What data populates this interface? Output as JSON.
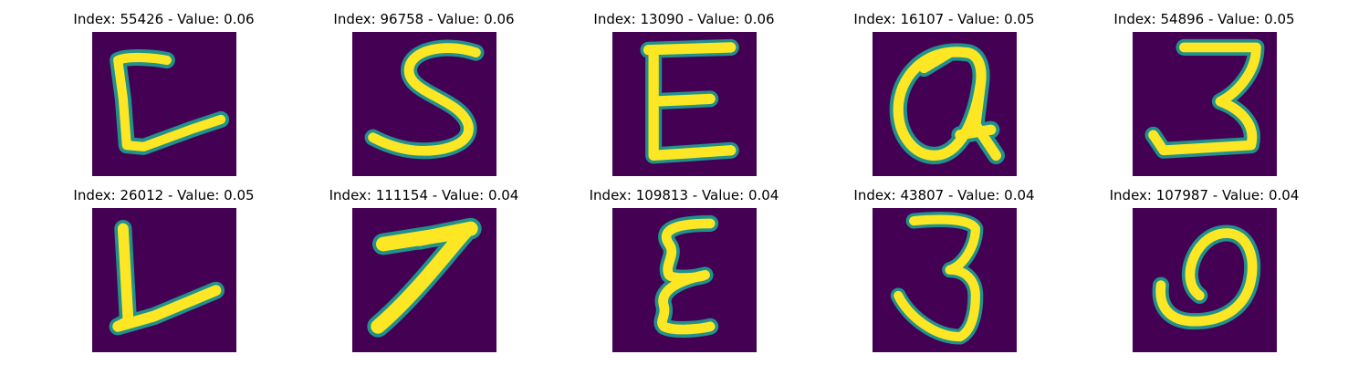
{
  "grid": [
    {
      "title": "Index: 55426 - Value: 0.06",
      "glyph": "C"
    },
    {
      "title": "Index: 96758 - Value: 0.06",
      "glyph": "S"
    },
    {
      "title": "Index: 13090 - Value: 0.06",
      "glyph": "E"
    },
    {
      "title": "Index: 16107 - Value: 0.05",
      "glyph": "a"
    },
    {
      "title": "Index: 54896 - Value: 0.05",
      "glyph": "3"
    },
    {
      "title": "Index: 26012 - Value: 0.05",
      "glyph": "L"
    },
    {
      "title": "Index: 111154 - Value: 0.04",
      "glyph": "7"
    },
    {
      "title": "Index: 109813 - Value: 0.04",
      "glyph": "E"
    },
    {
      "title": "Index: 43807 - Value: 0.04",
      "glyph": "3"
    },
    {
      "title": "Index: 107987 - Value: 0.04",
      "glyph": "O"
    }
  ],
  "colors": {
    "background": "#440154",
    "edge": "#21918c",
    "stroke": "#fde725"
  }
}
